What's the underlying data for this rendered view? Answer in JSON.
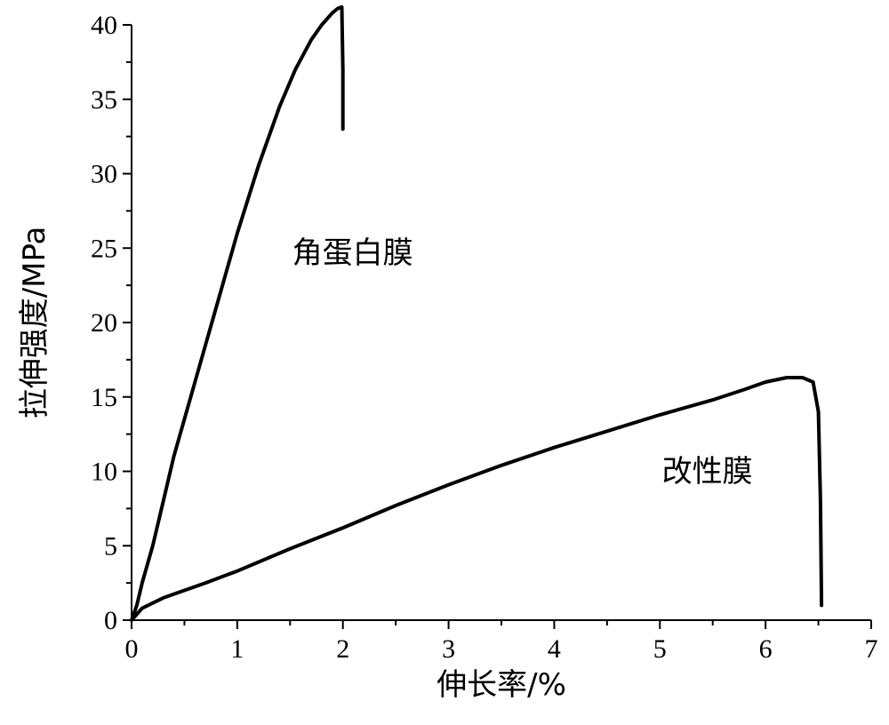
{
  "chart_data": {
    "type": "line",
    "title": "",
    "xlabel": "伸长率/%",
    "ylabel": "拉伸强度/MPa",
    "xlim": [
      0,
      7
    ],
    "ylim": [
      0,
      40
    ],
    "xticks": [
      0,
      1,
      2,
      3,
      4,
      5,
      6,
      7
    ],
    "yticks": [
      0,
      5,
      10,
      15,
      20,
      25,
      30,
      35,
      40
    ],
    "grid": false,
    "series": [
      {
        "name": "角蛋白膜",
        "color": "#000000",
        "x": [
          0,
          0.05,
          0.1,
          0.2,
          0.3,
          0.4,
          0.5,
          0.6,
          0.8,
          1.0,
          1.2,
          1.4,
          1.55,
          1.7,
          1.8,
          1.9,
          1.95,
          1.99,
          2.0,
          2.0
        ],
        "y": [
          0,
          1.0,
          2.5,
          5.0,
          8.0,
          11.0,
          13.5,
          16.0,
          21.0,
          26.0,
          30.5,
          34.5,
          37.0,
          39.0,
          40.0,
          40.8,
          41.1,
          41.2,
          37.0,
          33.0
        ]
      },
      {
        "name": "改性膜",
        "color": "#000000",
        "x": [
          0,
          0.1,
          0.3,
          0.5,
          0.7,
          1.0,
          1.5,
          2.0,
          2.5,
          3.0,
          3.5,
          4.0,
          4.5,
          5.0,
          5.5,
          5.8,
          6.0,
          6.2,
          6.35,
          6.45,
          6.5,
          6.52,
          6.53
        ],
        "y": [
          0,
          0.8,
          1.5,
          2.0,
          2.5,
          3.3,
          4.8,
          6.2,
          7.7,
          9.1,
          10.4,
          11.6,
          12.7,
          13.8,
          14.8,
          15.5,
          16.0,
          16.3,
          16.3,
          16.0,
          14.0,
          8.0,
          1.0
        ]
      }
    ],
    "annotations": [
      {
        "text": "角蛋白膜",
        "x": 1.52,
        "y": 24.0
      },
      {
        "text": "改性膜",
        "x": 5.02,
        "y": 9.3
      }
    ]
  }
}
